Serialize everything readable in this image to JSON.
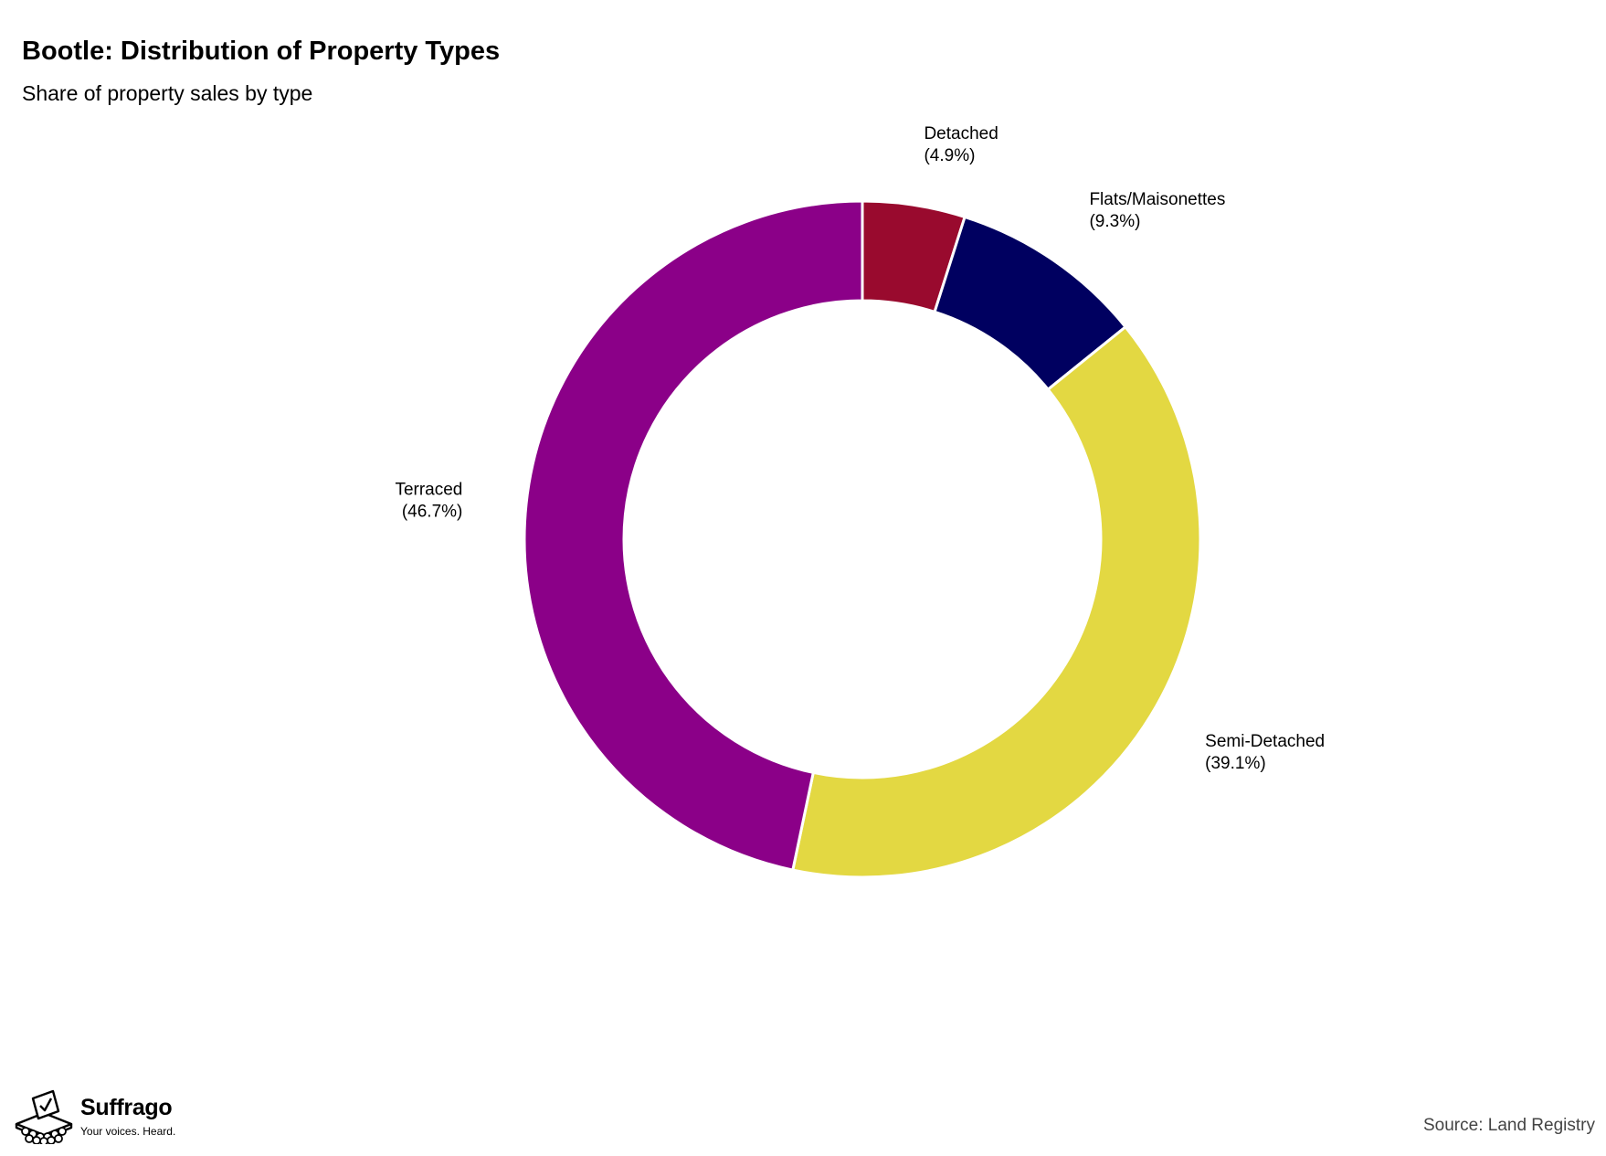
{
  "header": {
    "title": "Bootle: Distribution of Property Types",
    "subtitle": "Share of property sales by type"
  },
  "footer": {
    "brand_name": "Suffrago",
    "brand_tagline": "Your voices. Heard.",
    "source": "Source: Land Registry"
  },
  "chart_data": {
    "type": "pie",
    "variant": "donut",
    "title": "Bootle: Distribution of Property Types",
    "subtitle": "Share of property sales by type",
    "start_angle": "12 o'clock",
    "direction": "clockwise",
    "slice_separator_color": "#ffffff",
    "slices": [
      {
        "name": "Detached",
        "label": "(4.9%)",
        "value": 4.9,
        "color": "#990a2e"
      },
      {
        "name": "Flats/Maisonettes",
        "label": "(9.3%)",
        "value": 9.3,
        "color": "#000060"
      },
      {
        "name": "Semi-Detached",
        "label": "(39.1%)",
        "value": 39.1,
        "color": "#e3d842"
      },
      {
        "name": "Terraced",
        "label": "(46.7%)",
        "value": 46.7,
        "color": "#8b0088"
      }
    ]
  }
}
